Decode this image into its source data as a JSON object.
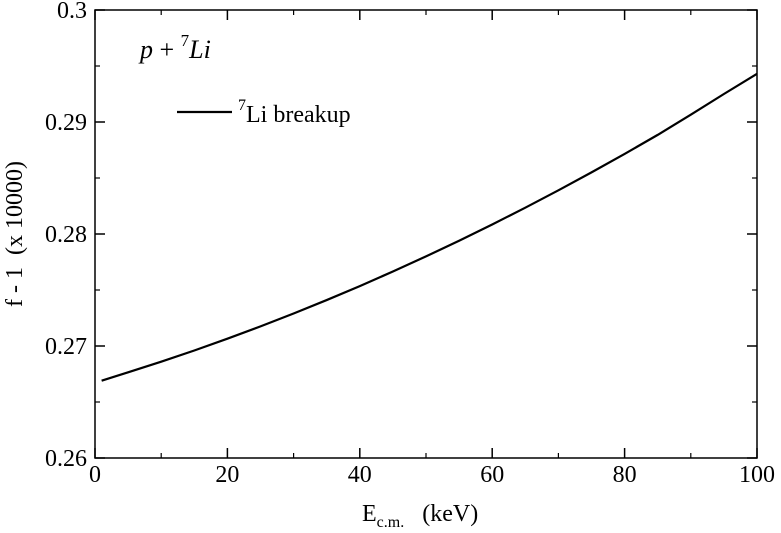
{
  "chart_data": {
    "type": "line",
    "xlabel": "E",
    "xlabel_sub": "c.m.",
    "xlabel_unit": "(keV)",
    "ylabel": "f - 1  (x 10000)",
    "xlim": [
      0,
      100
    ],
    "ylim": [
      0.26,
      0.3
    ],
    "x_ticks": [
      {
        "value": 0,
        "label": "0"
      },
      {
        "value": 20,
        "label": "20"
      },
      {
        "value": 40,
        "label": "40"
      },
      {
        "value": 60,
        "label": "60"
      },
      {
        "value": 80,
        "label": "80"
      },
      {
        "value": 100,
        "label": "100"
      }
    ],
    "y_ticks": [
      {
        "value": 0.26,
        "label": "0.26"
      },
      {
        "value": 0.27,
        "label": "0.27"
      },
      {
        "value": 0.28,
        "label": "0.28"
      },
      {
        "value": 0.29,
        "label": "0.29"
      },
      {
        "value": 0.3,
        "label": "0.3"
      }
    ],
    "x_minor_step": 10,
    "y_minor_step": 0.005,
    "grid": false,
    "legend_position": "top-left",
    "annotation": {
      "p": "p",
      "plus": " + ",
      "mass": "7",
      "element": "Li"
    },
    "series": [
      {
        "name": "Li breakup",
        "name_superscript": "7",
        "color": "#000000",
        "x": [
          1,
          5,
          10,
          15,
          20,
          25,
          30,
          35,
          40,
          45,
          50,
          55,
          60,
          65,
          70,
          75,
          80,
          85,
          90,
          95,
          100
        ],
        "y": [
          0.2669,
          0.26765,
          0.2686,
          0.2696,
          0.27065,
          0.27175,
          0.2729,
          0.2741,
          0.27535,
          0.27665,
          0.278,
          0.2794,
          0.28085,
          0.28235,
          0.2839,
          0.2855,
          0.28715,
          0.28885,
          0.29065,
          0.2925,
          0.2943
        ]
      }
    ]
  }
}
